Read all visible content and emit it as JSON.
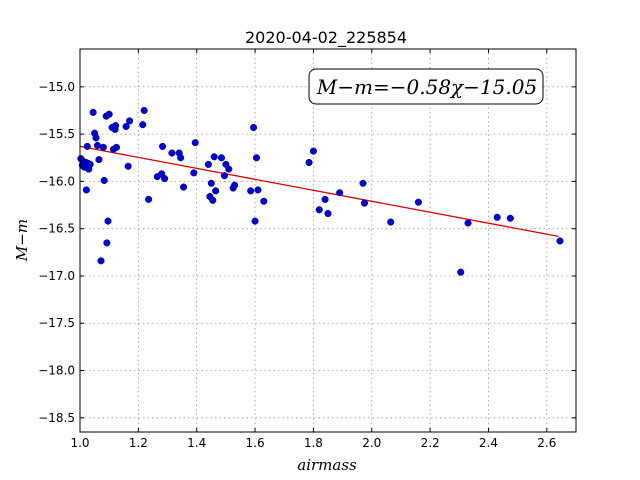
{
  "chart_data": {
    "type": "scatter",
    "title": "2020-04-02_225854",
    "xlabel": "airmass",
    "ylabel": "M−m",
    "xlim": [
      1.0,
      2.7
    ],
    "ylim": [
      -18.65,
      -14.6
    ],
    "y_inverted": true,
    "grid": true,
    "x_ticks": [
      1.0,
      1.2,
      1.4,
      1.6,
      1.8,
      2.0,
      2.2,
      2.4,
      2.6
    ],
    "x_tick_labels": [
      "1.0",
      "1.2",
      "1.4",
      "1.6",
      "1.8",
      "2.0",
      "2.2",
      "2.4",
      "2.6"
    ],
    "y_ticks": [
      -15.0,
      -15.5,
      -16.0,
      -16.5,
      -17.0,
      -17.5,
      -18.0,
      -18.5
    ],
    "y_tick_labels": [
      "−15.0",
      "−15.5",
      "−16.0",
      "−16.5",
      "−17.0",
      "−17.5",
      "−18.0",
      "−18.5"
    ],
    "point_color": "#0000cc",
    "fit_color": "#dd0000",
    "fit": {
      "slope": -0.58,
      "intercept": -15.05,
      "x_range": [
        1.0,
        2.64
      ]
    },
    "annotation": "M−m=−0.58χ−15.05",
    "annotation_position": "top-right",
    "points": [
      [
        1.003,
        -15.76
      ],
      [
        1.008,
        -15.83
      ],
      [
        1.012,
        -15.79
      ],
      [
        1.015,
        -15.85
      ],
      [
        1.02,
        -15.8
      ],
      [
        1.022,
        -16.09
      ],
      [
        1.025,
        -15.63
      ],
      [
        1.028,
        -15.81
      ],
      [
        1.03,
        -15.87
      ],
      [
        1.035,
        -15.82
      ],
      [
        1.045,
        -15.27
      ],
      [
        1.05,
        -15.49
      ],
      [
        1.055,
        -15.54
      ],
      [
        1.06,
        -15.62
      ],
      [
        1.065,
        -15.77
      ],
      [
        1.072,
        -16.84
      ],
      [
        1.08,
        -15.64
      ],
      [
        1.083,
        -15.99
      ],
      [
        1.09,
        -15.31
      ],
      [
        1.092,
        -16.65
      ],
      [
        1.096,
        -16.42
      ],
      [
        1.1,
        -15.29
      ],
      [
        1.11,
        -15.43
      ],
      [
        1.115,
        -15.66
      ],
      [
        1.12,
        -15.45
      ],
      [
        1.122,
        -15.41
      ],
      [
        1.125,
        -15.64
      ],
      [
        1.158,
        -15.42
      ],
      [
        1.165,
        -15.84
      ],
      [
        1.17,
        -15.36
      ],
      [
        1.215,
        -15.4
      ],
      [
        1.22,
        -15.25
      ],
      [
        1.235,
        -16.19
      ],
      [
        1.265,
        -15.95
      ],
      [
        1.28,
        -15.92
      ],
      [
        1.283,
        -15.63
      ],
      [
        1.29,
        -15.97
      ],
      [
        1.315,
        -15.7
      ],
      [
        1.34,
        -15.7
      ],
      [
        1.345,
        -15.75
      ],
      [
        1.355,
        -16.06
      ],
      [
        1.39,
        -15.91
      ],
      [
        1.395,
        -15.59
      ],
      [
        1.44,
        -15.82
      ],
      [
        1.445,
        -16.16
      ],
      [
        1.45,
        -16.02
      ],
      [
        1.455,
        -16.2
      ],
      [
        1.46,
        -15.74
      ],
      [
        1.465,
        -16.1
      ],
      [
        1.485,
        -15.75
      ],
      [
        1.495,
        -15.94
      ],
      [
        1.5,
        -15.82
      ],
      [
        1.51,
        -15.87
      ],
      [
        1.525,
        -16.07
      ],
      [
        1.53,
        -16.04
      ],
      [
        1.585,
        -16.1
      ],
      [
        1.595,
        -15.43
      ],
      [
        1.6,
        -16.42
      ],
      [
        1.605,
        -15.75
      ],
      [
        1.61,
        -16.09
      ],
      [
        1.63,
        -16.21
      ],
      [
        1.785,
        -15.8
      ],
      [
        1.8,
        -15.68
      ],
      [
        1.82,
        -16.3
      ],
      [
        1.84,
        -16.19
      ],
      [
        1.85,
        -16.34
      ],
      [
        1.89,
        -16.12
      ],
      [
        1.97,
        -16.02
      ],
      [
        1.975,
        -16.23
      ],
      [
        2.065,
        -16.43
      ],
      [
        2.16,
        -16.22
      ],
      [
        2.305,
        -16.96
      ],
      [
        2.33,
        -16.44
      ],
      [
        2.43,
        -16.38
      ],
      [
        2.475,
        -16.39
      ],
      [
        2.645,
        -16.63
      ]
    ]
  }
}
